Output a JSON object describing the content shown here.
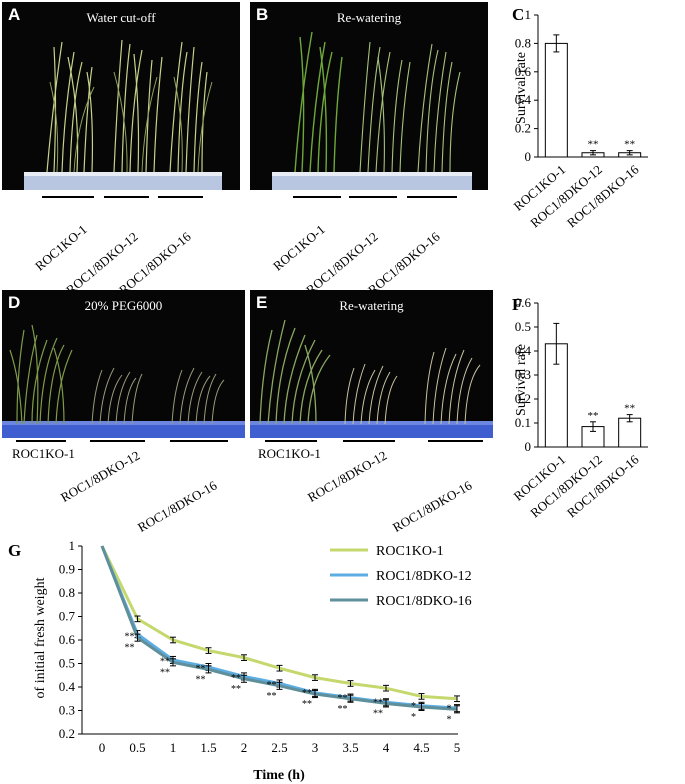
{
  "panels": {
    "A": {
      "letter": "A",
      "title": "Water cut-off"
    },
    "B": {
      "letter": "B",
      "title": "Re-watering"
    },
    "C": {
      "letter": "C"
    },
    "D": {
      "letter": "D",
      "title": "20% PEG6000"
    },
    "E": {
      "letter": "E",
      "title": "Re-watering"
    },
    "F": {
      "letter": "F"
    },
    "G": {
      "letter": "G"
    }
  },
  "genotypes": [
    "ROC1KO-1",
    "ROC1/8DKO-12",
    "ROC1/8DKO-16"
  ],
  "colors": {
    "line_ko1": "#c5d86d",
    "line_dko12": "#5dade2",
    "line_dko16": "#5f8f9a",
    "photo_bg": "#060606",
    "tray": "#3f5fd0"
  },
  "chart_data": [
    {
      "id": "C",
      "type": "bar",
      "categories": [
        "ROC1KO-1",
        "ROC1/8DKO-12",
        "ROC1/8DKO-16"
      ],
      "values": [
        0.8,
        0.03,
        0.03
      ],
      "errors": [
        0.06,
        0.015,
        0.015
      ],
      "annotations": [
        "",
        "**",
        "**"
      ],
      "ylabel": "Survival rate",
      "ylim": [
        0,
        1
      ],
      "yticks": [
        0,
        0.2,
        0.4,
        0.6,
        0.8,
        1
      ],
      "ytick_labels": [
        "0",
        "0.2",
        "0.4",
        "0.6",
        "0.8",
        "1"
      ]
    },
    {
      "id": "F",
      "type": "bar",
      "categories": [
        "ROC1KO-1",
        "ROC1/8DKO-12",
        "ROC1/8DKO-16"
      ],
      "values": [
        0.43,
        0.085,
        0.12
      ],
      "errors": [
        0.085,
        0.02,
        0.015
      ],
      "annotations": [
        "",
        "**",
        "**"
      ],
      "ylabel": "Survival rate",
      "ylim": [
        0,
        0.6
      ],
      "yticks": [
        0,
        0.1,
        0.2,
        0.3,
        0.4,
        0.5,
        0.6
      ],
      "ytick_labels": [
        "0",
        "0.1",
        "0.2",
        "0.3",
        "0.4",
        "0.5",
        "0.6"
      ]
    },
    {
      "id": "G",
      "type": "line",
      "x": [
        0,
        0.5,
        1,
        1.5,
        2,
        2.5,
        3,
        3.5,
        4,
        4.5,
        5
      ],
      "xtick_labels": [
        "0",
        "0.5",
        "1",
        "1.5",
        "2",
        "2.5",
        "3",
        "3.5",
        "4",
        "4.5",
        "5"
      ],
      "series": [
        {
          "name": "ROC1KO-1",
          "values": [
            1.0,
            0.69,
            0.6,
            0.555,
            0.525,
            0.48,
            0.44,
            0.415,
            0.395,
            0.36,
            0.35
          ],
          "error": 0.012
        },
        {
          "name": "ROC1/8DKO-12",
          "values": [
            1.0,
            0.625,
            0.515,
            0.485,
            0.445,
            0.415,
            0.375,
            0.355,
            0.335,
            0.32,
            0.31
          ],
          "error": 0.015
        },
        {
          "name": "ROC1/8DKO-16",
          "values": [
            1.0,
            0.61,
            0.505,
            0.475,
            0.435,
            0.405,
            0.37,
            0.35,
            0.33,
            0.315,
            0.305
          ],
          "error": 0.015
        }
      ],
      "significance": {
        "upper": [
          "",
          "**",
          "**",
          "**",
          "**",
          "**",
          "**",
          "**",
          "**",
          "*",
          "*"
        ],
        "lower": [
          "",
          "**",
          "**",
          "**",
          "**",
          "**",
          "**",
          "**",
          "**",
          "*",
          "*"
        ]
      },
      "ylabel": "of initial fresh weight",
      "xlabel": "Time (h)",
      "ylim": [
        0.2,
        1
      ],
      "yticks": [
        0.2,
        0.3,
        0.4,
        0.5,
        0.6,
        0.7,
        0.8,
        0.9,
        1
      ],
      "ytick_labels": [
        "0.2",
        "0.3",
        "0.4",
        "0.5",
        "0.6",
        "0.7",
        "0.8",
        "0.9",
        "1"
      ],
      "legend": "top-right"
    }
  ]
}
